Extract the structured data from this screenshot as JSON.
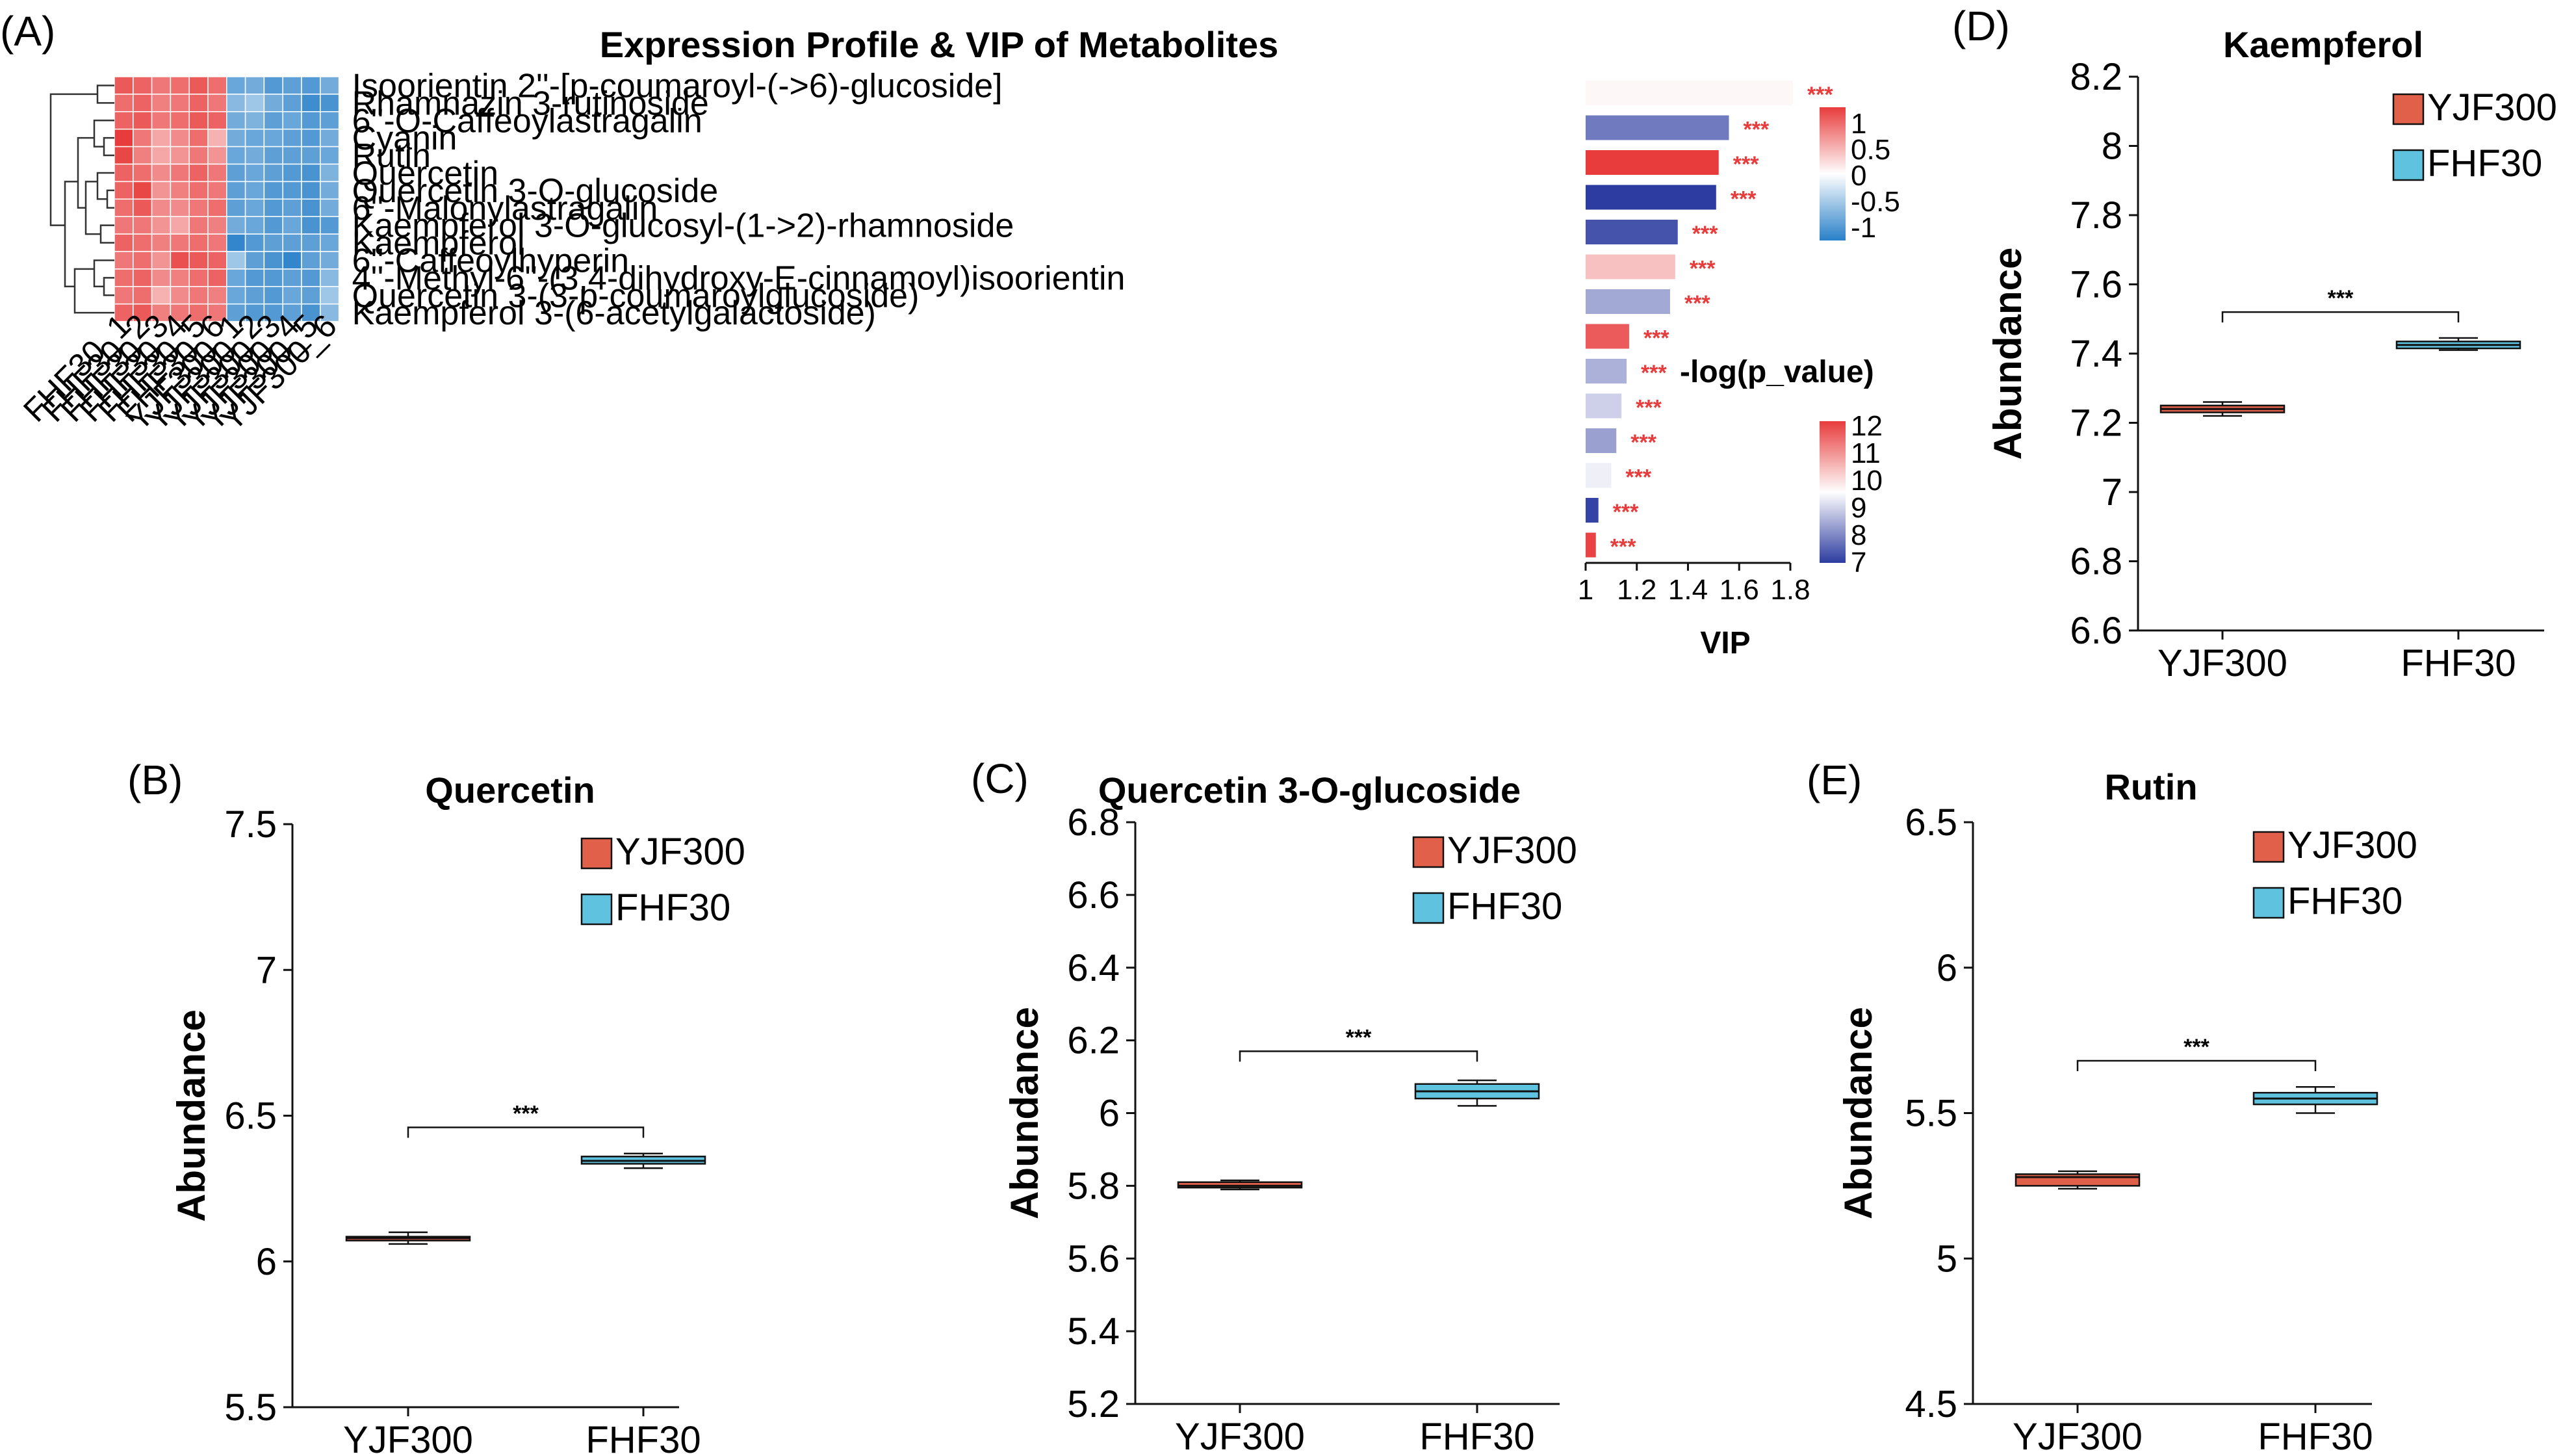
{
  "chart_data": [
    {
      "panel": "(A)",
      "type": "heatmap",
      "title": "Expression Profile & VIP of Metabolites",
      "columns": [
        "FHF30_1",
        "FHF30_2",
        "FHF30_3",
        "FHF30_4",
        "FHF30_5",
        "FHF30_6",
        "YJF300_1",
        "YJF300_2",
        "YJF300_3",
        "YJF300_4",
        "YJF300_5",
        "YJF300_6"
      ],
      "column_labels": [
        "FHF30_1",
        "FHF30_2",
        "FHF30_3",
        "FHF30_4",
        "FHF30_5",
        "FHF30_6",
        "YJF300_1",
        "YJF300_2",
        "YJF300_3",
        "YJF300_4",
        "YJF300_5",
        "YJF300_6"
      ],
      "rows": [
        "Isoorientin 2''-[p-coumaroyl-(->6)-glucoside]",
        "Rhamnazin 3-rutinoside",
        "6''-O-Caffeoylastragalin",
        "Cyanin",
        "Rutin",
        "Quercetin",
        "Quercetin 3-O-glucoside",
        "6''-Malonylastragalin",
        "Kaempferol 3-O-glucosyl-(1->2)-rhamnoside",
        "Kaempferol",
        "6''-Caffeoylhyperin",
        "4''-Methyl-6''-(3,4-dihydroxy-E-cinnamoyl)isoorientin",
        "Quercetin 3-(3-p-coumaroylglucoside)",
        "Kaempferol 3-(6-acetylgalactoside)"
      ],
      "values": [
        [
          0.85,
          0.8,
          0.7,
          0.75,
          0.85,
          0.75,
          -0.7,
          -0.65,
          -0.8,
          -0.75,
          -0.8,
          -0.65
        ],
        [
          0.75,
          0.8,
          0.65,
          0.7,
          0.8,
          0.7,
          -0.55,
          -0.45,
          -0.65,
          -0.75,
          -0.9,
          -0.85
        ],
        [
          0.8,
          0.85,
          0.7,
          0.75,
          0.85,
          0.8,
          -0.65,
          -0.6,
          -0.75,
          -0.7,
          -0.8,
          -0.75
        ],
        [
          1.0,
          0.7,
          0.45,
          0.6,
          0.75,
          0.4,
          -0.65,
          -0.7,
          -0.7,
          -0.75,
          -0.8,
          -0.65
        ],
        [
          0.95,
          0.65,
          0.45,
          0.55,
          0.7,
          0.55,
          -0.7,
          -0.65,
          -0.75,
          -0.75,
          -0.75,
          -0.7
        ],
        [
          0.8,
          0.75,
          0.6,
          0.7,
          0.8,
          0.7,
          -0.75,
          -0.7,
          -0.75,
          -0.8,
          -0.85,
          -0.6
        ],
        [
          0.8,
          0.95,
          0.55,
          0.65,
          0.75,
          0.7,
          -0.75,
          -0.7,
          -0.8,
          -0.8,
          -0.85,
          -0.65
        ],
        [
          0.75,
          0.85,
          0.6,
          0.6,
          0.7,
          0.75,
          -0.75,
          -0.7,
          -0.8,
          -0.75,
          -0.85,
          -0.65
        ],
        [
          0.7,
          0.7,
          0.55,
          0.45,
          0.7,
          0.65,
          -0.65,
          -0.7,
          -0.8,
          -0.7,
          -0.85,
          -0.8
        ],
        [
          0.8,
          0.75,
          0.65,
          0.7,
          0.75,
          0.7,
          -0.95,
          -0.8,
          -0.75,
          -0.75,
          -0.75,
          -0.7
        ],
        [
          0.7,
          0.75,
          0.55,
          0.9,
          0.85,
          0.8,
          -0.45,
          -0.75,
          -0.85,
          -0.95,
          -0.75,
          -0.65
        ],
        [
          0.75,
          0.8,
          0.6,
          0.65,
          0.75,
          0.8,
          -0.7,
          -0.8,
          -0.8,
          -0.75,
          -0.8,
          -0.55
        ],
        [
          0.7,
          0.75,
          0.4,
          0.6,
          0.7,
          0.65,
          -0.7,
          -0.75,
          -0.8,
          -0.7,
          -0.75,
          -0.45
        ],
        [
          0.8,
          0.85,
          0.65,
          0.7,
          0.75,
          0.7,
          -0.75,
          -0.8,
          -0.8,
          -0.75,
          -0.85,
          -0.55
        ]
      ],
      "color_scale": {
        "min": -1,
        "max": 1,
        "ticks": [
          "1",
          "0.5",
          "0",
          "-0.5",
          "-1"
        ]
      }
    },
    {
      "panel": "(A)",
      "type": "bar",
      "orientation": "horizontal",
      "xlabel": "VIP",
      "xlim": [
        1,
        1.8
      ],
      "xticks": [
        "1",
        "1.2",
        "1.4",
        "1.6",
        "1.8"
      ],
      "categories": [
        "Isoorientin 2''-[p-coumaroyl-(->6)-glucoside]",
        "Rhamnazin 3-rutinoside",
        "6''-O-Caffeoylastragalin",
        "Cyanin",
        "Rutin",
        "Quercetin",
        "Quercetin 3-O-glucoside",
        "6''-Malonylastragalin",
        "Kaempferol 3-O-glucosyl-(1->2)-rhamnoside",
        "Kaempferol",
        "6''-Caffeoylhyperin",
        "4''-Methyl-6''-(3,4-dihydroxy-E-cinnamoyl)isoorientin",
        "Quercetin 3-(3-p-coumaroylglucoside)",
        "Kaempferol 3-(6-acetylgalactoside)"
      ],
      "values": [
        1.81,
        1.56,
        1.52,
        1.51,
        1.36,
        1.35,
        1.33,
        1.17,
        1.16,
        1.14,
        1.12,
        1.1,
        1.05,
        1.04
      ],
      "color_values": [
        9.6,
        7.8,
        12.0,
        7.0,
        7.3,
        10.3,
        8.4,
        11.6,
        8.5,
        8.9,
        8.3,
        9.3,
        7.1,
        11.9
      ],
      "significance": "***",
      "color_legend": {
        "title": "-log(p_value)",
        "min": 7,
        "max": 12,
        "ticks": [
          "12",
          "11",
          "10",
          "9",
          "8",
          "7"
        ]
      }
    },
    {
      "panel": "(B)",
      "type": "box",
      "title": "Quercetin",
      "ylabel": "Abundance",
      "categories": [
        "YJF300",
        "FHF30"
      ],
      "yticks": [
        "7.5",
        "7",
        "6.5",
        "6",
        "5.5"
      ],
      "ylim": [
        5.5,
        7.5
      ],
      "series": [
        {
          "name": "YJF300",
          "color": "#e0604a",
          "min": 6.06,
          "q1": 6.075,
          "median": 6.08,
          "q3": 6.085,
          "max": 6.1
        },
        {
          "name": "FHF30",
          "color": "#5fc3e0",
          "min": 6.32,
          "q1": 6.335,
          "median": 6.345,
          "q3": 6.36,
          "max": 6.37
        }
      ],
      "significance": "***",
      "bracket_y": 6.46
    },
    {
      "panel": "(C)",
      "type": "box",
      "title": "Quercetin 3-O-glucoside",
      "ylabel": "Abundance",
      "categories": [
        "YJF300",
        "FHF30"
      ],
      "yticks": [
        "6.8",
        "6.6",
        "6.4",
        "6.2",
        "6",
        "5.8",
        "5.6",
        "5.4",
        "5.2"
      ],
      "ylim": [
        5.2,
        6.8
      ],
      "series": [
        {
          "name": "YJF300",
          "color": "#e0604a",
          "min": 5.79,
          "q1": 5.795,
          "median": 5.8,
          "q3": 5.81,
          "max": 5.815
        },
        {
          "name": "FHF30",
          "color": "#5fc3e0",
          "min": 6.02,
          "q1": 6.04,
          "median": 6.06,
          "q3": 6.08,
          "max": 6.09
        }
      ],
      "significance": "***",
      "bracket_y": 6.17
    },
    {
      "panel": "(D)",
      "type": "box",
      "title": "Kaempferol",
      "ylabel": "Abundance",
      "categories": [
        "YJF300",
        "FHF30"
      ],
      "yticks": [
        "8.2",
        "8",
        "7.8",
        "7.6",
        "7.4",
        "7.2",
        "7",
        "6.8",
        "6.6"
      ],
      "ylim": [
        6.6,
        8.2
      ],
      "series": [
        {
          "name": "YJF300",
          "color": "#e0604a",
          "min": 7.22,
          "q1": 7.23,
          "median": 7.24,
          "q3": 7.25,
          "max": 7.26
        },
        {
          "name": "FHF30",
          "color": "#5fc3e0",
          "min": 7.41,
          "q1": 7.415,
          "median": 7.425,
          "q3": 7.435,
          "max": 7.445
        }
      ],
      "significance": "***",
      "bracket_y": 7.52
    },
    {
      "panel": "(E)",
      "type": "box",
      "title": "Rutin",
      "ylabel": "Abundance",
      "categories": [
        "YJF300",
        "FHF30"
      ],
      "yticks": [
        "6.5",
        "6",
        "5.5",
        "5",
        "4.5"
      ],
      "ylim": [
        4.5,
        6.5
      ],
      "series": [
        {
          "name": "YJF300",
          "color": "#e0604a",
          "min": 5.24,
          "q1": 5.25,
          "median": 5.28,
          "q3": 5.29,
          "max": 5.3
        },
        {
          "name": "FHF30",
          "color": "#5fc3e0",
          "min": 5.5,
          "q1": 5.53,
          "median": 5.55,
          "q3": 5.57,
          "max": 5.59
        }
      ],
      "significance": "***",
      "bracket_y": 5.68
    }
  ]
}
